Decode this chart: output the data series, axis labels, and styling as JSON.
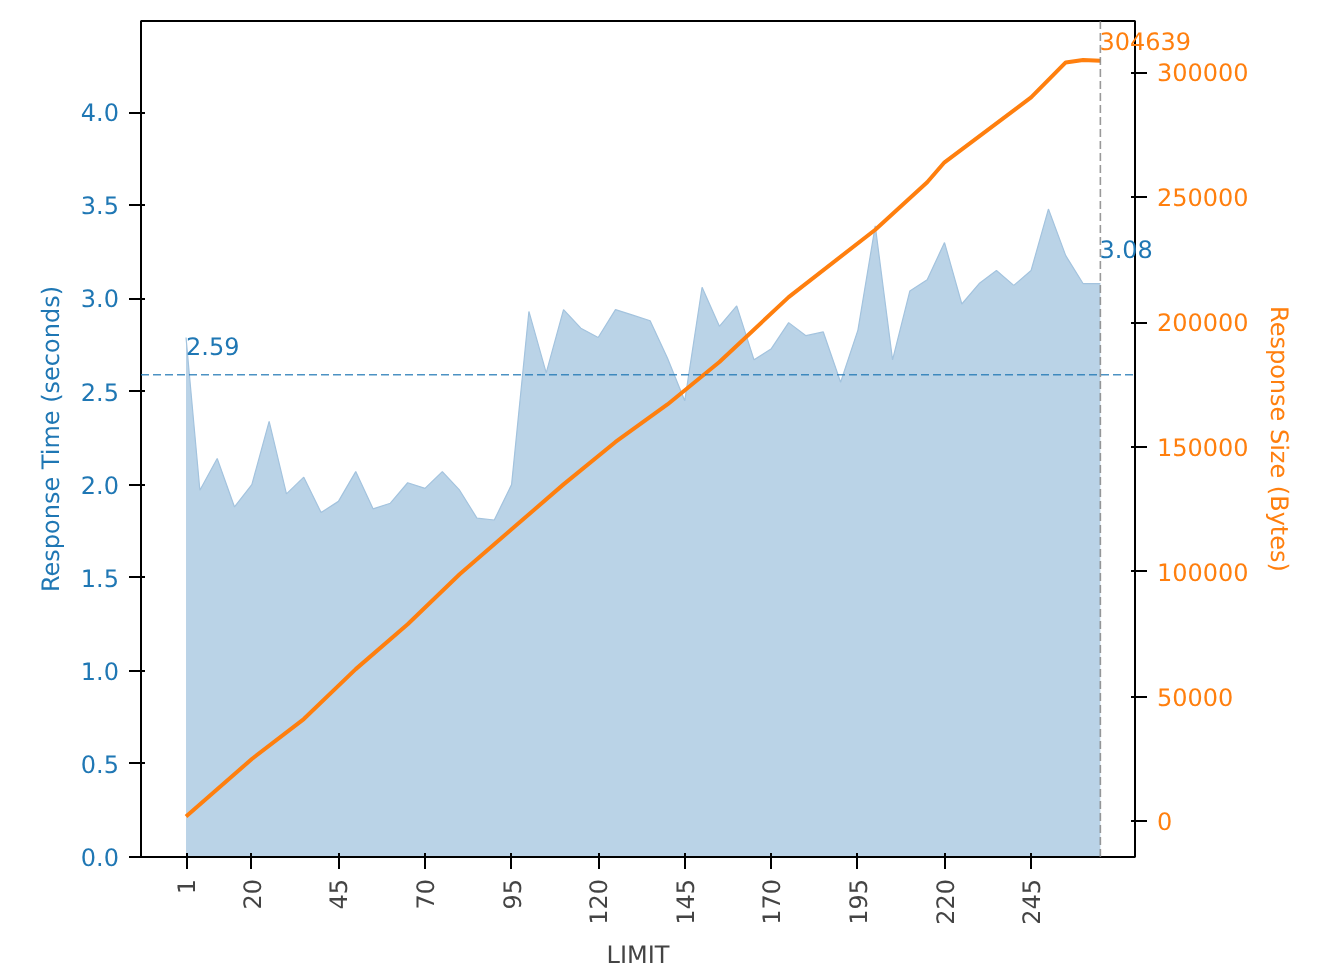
{
  "chart_data": {
    "type": "area",
    "xlabel": "LIMIT",
    "ylabel": "Response Time (seconds)",
    "y2label": "Response Size (Bytes)",
    "xlim": [
      -12,
      275
    ],
    "xticks": [
      1,
      20,
      45,
      70,
      95,
      120,
      145,
      170,
      195,
      220,
      245
    ],
    "ylim": [
      0,
      4.49
    ],
    "yticks": [
      {
        "value": 0,
        "label": "0.0"
      },
      0.5,
      {
        "value": 1,
        "label": "1.0"
      },
      1.5,
      {
        "value": 2,
        "label": "2.0"
      },
      2.5,
      {
        "value": 3,
        "label": "3.0"
      },
      3.5,
      {
        "value": 4,
        "label": "4.0"
      }
    ],
    "y2lim": [
      -14250,
      320600
    ],
    "y2ticks": [
      0,
      50000,
      100000,
      150000,
      200000,
      250000,
      300000
    ],
    "grid": false,
    "series": [
      {
        "color": "#bad3e7",
        "x": [
          1,
          5,
          10,
          15,
          20,
          25,
          30,
          35,
          40,
          45,
          50,
          55,
          60,
          65,
          70,
          75,
          80,
          85,
          90,
          95,
          100,
          105,
          110,
          115,
          120,
          125,
          130,
          135,
          140,
          145,
          150,
          155,
          160,
          165,
          170,
          175,
          180,
          185,
          190,
          195,
          200,
          205,
          210,
          215,
          220,
          225,
          230,
          235,
          240,
          245,
          250,
          255,
          260,
          265
        ],
        "values": [
          2.79,
          1.97,
          2.14,
          1.88,
          2.0,
          2.34,
          1.95,
          2.04,
          1.85,
          1.91,
          2.07,
          1.87,
          1.9,
          2.01,
          1.98,
          2.07,
          1.97,
          1.82,
          1.81,
          2.0,
          2.93,
          2.6,
          2.94,
          2.84,
          2.79,
          2.94,
          2.91,
          2.88,
          2.68,
          2.45,
          3.06,
          2.85,
          2.96,
          2.67,
          2.73,
          2.87,
          2.8,
          2.82,
          2.55,
          2.83,
          3.39,
          2.67,
          3.04,
          3.1,
          3.3,
          2.97,
          3.08,
          3.15,
          3.07,
          3.15,
          3.48,
          3.23,
          3.08,
          3.08
        ],
        "value_labels": [
          null,
          null,
          null,
          null,
          null,
          null,
          null,
          null,
          null,
          null,
          null,
          null,
          null,
          null,
          null,
          null,
          null,
          null,
          null,
          null,
          null,
          null,
          null,
          null,
          null,
          null,
          null,
          null,
          null,
          null,
          null,
          null,
          null,
          null,
          null,
          null,
          null,
          null,
          null,
          null,
          null,
          null,
          null,
          null,
          null,
          null,
          null,
          null,
          null,
          null,
          null,
          null,
          null,
          "3.08"
        ]
      },
      {
        "type": "line",
        "axis": "y2",
        "color": "#ff7f0e",
        "x": [
          1,
          20,
          35,
          50,
          65,
          80,
          95,
          110,
          125,
          140,
          155,
          175,
          200,
          215,
          220,
          245,
          255,
          260,
          265
        ],
        "values": [
          2000,
          25000,
          41000,
          61000,
          79000,
          99000,
          117000,
          135000,
          152000,
          167000,
          184000,
          210000,
          237000,
          256000,
          264000,
          290000,
          304000,
          305000,
          304639
        ],
        "value_labels": [
          null,
          null,
          null,
          null,
          null,
          null,
          null,
          null,
          null,
          null,
          null,
          null,
          null,
          null,
          null,
          null,
          null,
          null,
          "304639"
        ]
      }
    ],
    "ref_lines": [
      {
        "axis": "y",
        "value": 2.59,
        "label": "2.59",
        "color": "#1f77b4",
        "line_style": "dashed"
      },
      {
        "axis": "x",
        "value": 265,
        "label": null,
        "color": "#808080",
        "line_style": "dashed"
      }
    ]
  }
}
